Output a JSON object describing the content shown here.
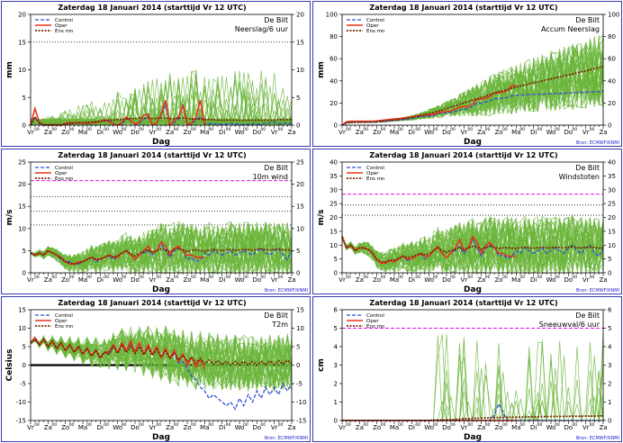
{
  "common": {
    "title": "Zaterdag  18 Januari  2014  (starttijd  Vr 12 UTC)",
    "station": "De Bilt",
    "xlabel": "Dag",
    "source": "Bron: ECMWF/KNMI",
    "legend": [
      "Control",
      "Oper",
      "Ens mn"
    ],
    "day_labels": [
      "Vr",
      "Za",
      "Zo",
      "Ma",
      "Di",
      "Wo",
      "Do",
      "Vr",
      "Za",
      "Zo",
      "Ma",
      "Di",
      "Wo",
      "Do",
      "Vr",
      "Za"
    ],
    "hour_label": "00",
    "colors": {
      "control": "#2f4fd8",
      "oper": "#e8331a",
      "ensmean": "#7a2400",
      "members": "#6ab53a",
      "frame": "#3a3ab0",
      "magenta": "#e010e0"
    }
  },
  "chart_data": [
    {
      "id": "neerslag",
      "type": "line",
      "subtitle": "Neerslag/6 uur",
      "ylabel": "mm",
      "ylim": [
        0,
        20
      ],
      "yticks": [
        0,
        5,
        10,
        15,
        20
      ],
      "ref_lines": [
        {
          "y": 15,
          "style": "dotted-black"
        }
      ],
      "control": [
        0,
        1.5,
        0.3,
        0,
        0,
        0,
        0,
        0,
        0.2,
        0.3,
        0.3,
        0.4,
        0.4,
        0.4,
        0.5,
        0.5,
        0.6,
        0.8,
        0.8,
        0.3,
        0,
        0.2,
        1.2,
        0.8,
        0,
        0.4,
        1.0,
        1.7,
        0,
        0.4,
        1.8,
        3.5,
        0,
        0.4,
        1.0,
        3.8,
        0.3,
        0.2,
        0.8,
        1.6,
        0.4,
        0.3,
        0.3,
        0.2,
        0.2,
        0.2,
        0.3,
        0.2,
        0.2,
        0.1,
        0.2,
        0.3,
        0.2,
        0.2,
        0.3,
        0.4,
        0.5,
        0.3,
        0.4,
        0.3,
        0.3
      ],
      "oper": [
        0,
        3.0,
        0.5,
        0,
        0,
        0,
        0,
        0,
        0.3,
        0.5,
        0.4,
        0.5,
        0.4,
        0.3,
        0.5,
        0.4,
        0.6,
        1.0,
        0.6,
        0.2,
        0,
        0.5,
        1.5,
        0.8,
        0.2,
        0.5,
        1.8,
        2.0,
        0,
        0.5,
        2.0,
        4.5,
        0,
        0.8,
        1.5,
        3.5,
        0,
        0.4,
        1.5,
        4.5,
        0
      ],
      "ens_mean": [
        0,
        1.5,
        0.4,
        0.1,
        0.1,
        0.1,
        0.1,
        0.1,
        0.2,
        0.3,
        0.4,
        0.4,
        0.4,
        0.5,
        0.5,
        0.6,
        0.7,
        0.8,
        0.9,
        0.9,
        1.0,
        1.0,
        1.1,
        1.2,
        1.2,
        1.3,
        1.3,
        1.3,
        1.2,
        1.2,
        1.3,
        1.3,
        1.2,
        1.2,
        1.3,
        1.3,
        1.2,
        1.1,
        1.1,
        1.1,
        1.0,
        1.0,
        1.0,
        0.9,
        0.9,
        0.9,
        0.9,
        0.9,
        0.9,
        0.9,
        0.9,
        0.9,
        0.9,
        0.9,
        0.9,
        0.9,
        0.9,
        1.0,
        1.0,
        1.0,
        1.0
      ],
      "members": {
        "n": 40,
        "spread_min": 0,
        "spread_max": 10
      },
      "source_box": false
    },
    {
      "id": "accum",
      "type": "line",
      "subtitle": "Accum Neerslag",
      "ylabel": "mm",
      "ylim": [
        0,
        100
      ],
      "yticks": [
        0,
        20,
        40,
        60,
        80,
        100
      ],
      "ref_lines": [],
      "control": [
        0,
        2,
        2.5,
        2.5,
        2.5,
        2.5,
        2.5,
        2.5,
        2.7,
        3,
        3.3,
        3.7,
        4.1,
        4.5,
        5,
        5.5,
        6,
        7,
        7.5,
        8,
        8,
        8.5,
        10,
        11,
        11,
        11.5,
        12.5,
        14,
        14,
        15,
        17,
        20,
        20,
        21,
        22,
        24,
        24,
        24.5,
        25,
        26.5,
        27,
        27,
        27.3,
        27.5,
        27.7,
        27.9,
        28,
        28.2,
        28.4,
        28.5,
        28.6,
        28.8,
        29,
        29.2,
        29.4,
        29.6,
        29.8,
        30,
        30.2,
        30.4,
        30.6
      ],
      "oper": [
        0,
        3,
        3.5,
        3.5,
        3.5,
        3.5,
        3.5,
        3.5,
        3.8,
        4.3,
        4.7,
        5.2,
        5.6,
        5.9,
        6.4,
        6.8,
        7.4,
        8.4,
        9,
        9.2,
        9.2,
        9.7,
        11.2,
        12,
        12.2,
        12.7,
        14.5,
        16.5,
        16.5,
        17,
        19,
        23.5,
        23.5,
        24.3,
        25.8,
        29.3,
        29.3,
        29.7,
        31.2,
        35.7,
        35.7
      ],
      "ens_mean": [
        0,
        2,
        2.4,
        2.5,
        2.6,
        2.7,
        2.8,
        2.9,
        3.1,
        3.4,
        3.8,
        4.2,
        4.6,
        5.1,
        5.6,
        6.2,
        6.9,
        7.7,
        8.6,
        9.5,
        10.5,
        11.5,
        12.6,
        13.8,
        15,
        16.3,
        17.6,
        18.9,
        20.1,
        21.3,
        22.6,
        23.9,
        25.1,
        26.3,
        27.6,
        28.9,
        30.1,
        31.2,
        32.3,
        33.4,
        34.4,
        35.4,
        36.4,
        37.3,
        38.2,
        39.1,
        40,
        40.9,
        41.8,
        42.7,
        43.6,
        44.5,
        45.4,
        46.3,
        47.2,
        48.1,
        49,
        50,
        51,
        52,
        53
      ],
      "members": {
        "n": 40,
        "spread_min": 5,
        "spread_max": 80
      },
      "source_box": true
    },
    {
      "id": "wind",
      "type": "line",
      "subtitle": "10m wind",
      "ylabel": "m/s",
      "ylim": [
        0,
        25
      ],
      "yticks": [
        0,
        5,
        10,
        15,
        20,
        25
      ],
      "ref_lines": [
        {
          "y": 20.8,
          "style": "dashed-magenta"
        },
        {
          "y": 17.2,
          "style": "dotted-black"
        },
        {
          "y": 13.9,
          "style": "dotted-black"
        },
        {
          "y": 10.8,
          "style": "dotted-black"
        }
      ],
      "control": [
        4.5,
        4,
        4.5,
        4,
        5,
        4.5,
        4,
        3,
        2.5,
        2.5,
        2,
        2,
        2.5,
        3,
        3.5,
        2.5,
        3,
        3.5,
        4,
        3,
        3.5,
        4.5,
        5,
        4,
        3,
        4,
        4.5,
        5,
        4,
        5,
        6.5,
        5,
        3.5,
        5,
        5.5,
        5,
        3,
        3.5,
        2.5,
        3,
        4.5,
        4,
        5,
        4.5,
        4,
        4.5,
        5,
        4,
        4.5,
        5,
        4.5,
        4,
        5,
        5.5,
        4.5,
        4,
        5,
        5.5,
        4,
        3,
        5
      ],
      "oper": [
        4.5,
        4,
        4.5,
        4,
        5,
        4.5,
        4,
        3.5,
        2.5,
        2,
        2,
        2.5,
        2.5,
        3,
        3.5,
        3,
        3,
        3.5,
        4,
        3.5,
        3.5,
        4.5,
        5,
        4,
        3,
        4,
        5,
        6,
        4.5,
        5,
        7,
        6,
        4,
        5.5,
        6,
        5,
        4,
        4,
        3.5,
        3.5,
        3.5
      ],
      "ens_mean": [
        4.5,
        4,
        4.5,
        4,
        5,
        4.5,
        4,
        3.3,
        2.5,
        2.2,
        2,
        2.2,
        2.5,
        3,
        3.5,
        3,
        3.2,
        3.5,
        4,
        3.6,
        3.8,
        4.5,
        5,
        4.3,
        3.8,
        4.4,
        4.8,
        5.2,
        4.6,
        5,
        5.5,
        5.2,
        4.7,
        5.2,
        5.5,
        5.2,
        4.8,
        5.1,
        5.2,
        5,
        4.9,
        5.1,
        5.3,
        5.1,
        5,
        5.2,
        5.3,
        5.1,
        5.1,
        5.3,
        5.2,
        5.1,
        5.3,
        5.4,
        5.2,
        5.1,
        5.3,
        5.4,
        5.2,
        5.1,
        5.3
      ],
      "members": {
        "n": 40,
        "spread_min": 1,
        "spread_max": 19
      },
      "source_box": true
    },
    {
      "id": "windstoten",
      "type": "line",
      "subtitle": "Windstoten",
      "ylabel": "m/s",
      "ylim": [
        0,
        40
      ],
      "yticks": [
        0,
        5,
        10,
        15,
        20,
        25,
        30,
        35,
        40
      ],
      "ref_lines": [
        {
          "y": 28.4,
          "style": "dashed-magenta"
        },
        {
          "y": 24.5,
          "style": "dotted-black"
        },
        {
          "y": 20.8,
          "style": "dotted-black"
        }
      ],
      "control": [
        13,
        9,
        10,
        8,
        9,
        9,
        8.5,
        7,
        4.5,
        3.5,
        3.5,
        4.5,
        4,
        5,
        6,
        4.5,
        5,
        6,
        7,
        5,
        6,
        8,
        9.5,
        7,
        5.5,
        7,
        8,
        9.5,
        7,
        9,
        12,
        9,
        6,
        9,
        10,
        9,
        6,
        6.5,
        5,
        6,
        8,
        7,
        9,
        8,
        7,
        8,
        9,
        7,
        8,
        9,
        8,
        7,
        9,
        10,
        8,
        7,
        9,
        10,
        7,
        6,
        9
      ],
      "oper": [
        13,
        9,
        10,
        8,
        9,
        9,
        8.5,
        7,
        4.5,
        3.5,
        3.5,
        4.5,
        4,
        5,
        6,
        5,
        5,
        6,
        7,
        6,
        6,
        8,
        9.5,
        7,
        5.5,
        7,
        9,
        12,
        8,
        9,
        13,
        11,
        7,
        10,
        11,
        9,
        7,
        7,
        6,
        6,
        6
      ],
      "ens_mean": [
        13,
        9,
        10,
        8,
        9,
        9,
        8.5,
        7.2,
        4.8,
        4,
        4,
        4.6,
        4.6,
        5.2,
        6,
        5.5,
        5.8,
        6.3,
        7,
        6.6,
        6.8,
        8,
        9,
        8,
        7.4,
        8,
        8.5,
        9.2,
        8.4,
        9,
        9.6,
        9.3,
        8.6,
        9.2,
        9.6,
        9.2,
        8.8,
        9,
        9.1,
        8.9,
        8.8,
        9,
        9.3,
        9,
        8.9,
        9.1,
        9.3,
        9,
        9,
        9.3,
        9.1,
        9,
        9.2,
        9.4,
        9.1,
        9,
        9.2,
        9.4,
        9.1,
        8.9,
        9.2
      ],
      "members": {
        "n": 40,
        "spread_min": 2,
        "spread_max": 34
      },
      "source_box": true
    },
    {
      "id": "t2m",
      "type": "line",
      "subtitle": "T2m",
      "ylabel": "Celsius",
      "ylim": [
        -15,
        15
      ],
      "yticks": [
        -15,
        -10,
        -5,
        0,
        5,
        10,
        15
      ],
      "ref_lines": [
        {
          "y": 0,
          "style": "solid-black-thick"
        }
      ],
      "control": [
        6,
        7,
        5.5,
        7,
        5,
        6.5,
        4.5,
        6,
        4,
        5.5,
        3.5,
        5,
        3,
        4.5,
        2.5,
        4,
        2,
        3.5,
        3,
        5,
        3.5,
        5.5,
        4,
        6,
        4,
        5.5,
        3,
        5,
        3,
        4.5,
        2,
        4,
        2,
        3,
        0.5,
        1,
        -1,
        -3,
        -4,
        -6,
        -7,
        -9,
        -8,
        -9,
        -10,
        -11,
        -10,
        -12,
        -9,
        -11,
        -8,
        -10,
        -7,
        -9,
        -6,
        -8,
        -6,
        -8,
        -5,
        -7,
        -5
      ],
      "oper": [
        6,
        7.5,
        5.5,
        7,
        5,
        6.5,
        4.5,
        6,
        4,
        5.5,
        3.5,
        5,
        3,
        4.5,
        2.5,
        4,
        2,
        3.5,
        3.5,
        5.5,
        3.5,
        6,
        4,
        6.5,
        3.5,
        6,
        3,
        5.5,
        3,
        5,
        2,
        4.5,
        2,
        4,
        1,
        3,
        0,
        2,
        -0.5,
        1.5,
        -1
      ],
      "ens_mean": [
        6,
        7,
        5.5,
        7,
        5,
        6.5,
        4.5,
        6,
        4,
        5.5,
        3.5,
        5,
        3,
        4.5,
        2.5,
        4,
        2,
        3.5,
        3,
        5,
        3.2,
        5.2,
        3.4,
        5.2,
        3.2,
        5,
        2.8,
        4.6,
        2.6,
        4.2,
        2.2,
        3.8,
        1.8,
        3.2,
        1.4,
        2.6,
        1,
        2.2,
        0.6,
        1.8,
        0.4,
        1.4,
        0.2,
        1.2,
        0.1,
        1,
        0,
        1,
        0,
        1,
        0,
        1,
        0,
        1,
        0.1,
        1.1,
        0.2,
        1.2,
        0.3,
        1.3,
        0.4
      ],
      "members": {
        "n": 40,
        "spread_min": -11,
        "spread_max": 10
      },
      "source_box": true
    },
    {
      "id": "sneeuw",
      "type": "line",
      "subtitle": "Sneeuwval/6 uur",
      "ylabel": "cm",
      "ylim": [
        0,
        6
      ],
      "yticks": [
        0,
        1,
        2,
        3,
        4,
        5,
        6
      ],
      "ref_lines": [
        {
          "y": 5,
          "style": "dashed-magenta"
        }
      ],
      "control": [
        0,
        0,
        0,
        0,
        0,
        0,
        0,
        0,
        0,
        0,
        0,
        0,
        0,
        0,
        0,
        0,
        0,
        0,
        0,
        0,
        0,
        0,
        0,
        0,
        0,
        0,
        0,
        0,
        0,
        0,
        0,
        0,
        0,
        0,
        0,
        0.3,
        0.9,
        0.4,
        0,
        0,
        0,
        0,
        0,
        0,
        0,
        0,
        0,
        0,
        0,
        0,
        0,
        0,
        0,
        0,
        0,
        0,
        0,
        0,
        0,
        0,
        0
      ],
      "oper": [
        0,
        0,
        0,
        0,
        0,
        0,
        0,
        0,
        0,
        0,
        0,
        0,
        0,
        0,
        0,
        0,
        0,
        0,
        0,
        0,
        0,
        0,
        0,
        0,
        0,
        0,
        0,
        0,
        0,
        0,
        0,
        0,
        0,
        0,
        0,
        0,
        0,
        0,
        0,
        0,
        0
      ],
      "ens_mean": [
        0,
        0,
        0,
        0,
        0,
        0,
        0,
        0,
        0,
        0,
        0,
        0,
        0,
        0,
        0,
        0,
        0,
        0,
        0,
        0,
        0,
        0.02,
        0.03,
        0.03,
        0.04,
        0.05,
        0.06,
        0.08,
        0.1,
        0.1,
        0.12,
        0.12,
        0.13,
        0.14,
        0.14,
        0.15,
        0.16,
        0.16,
        0.17,
        0.17,
        0.18,
        0.18,
        0.19,
        0.2,
        0.2,
        0.2,
        0.21,
        0.21,
        0.22,
        0.22,
        0.22,
        0.22,
        0.23,
        0.23,
        0.23,
        0.23,
        0.24,
        0.24,
        0.24,
        0.25,
        0.25
      ],
      "members": {
        "n": 40,
        "spread_min": 0,
        "spread_max": 4.8
      },
      "source_box": true
    }
  ]
}
